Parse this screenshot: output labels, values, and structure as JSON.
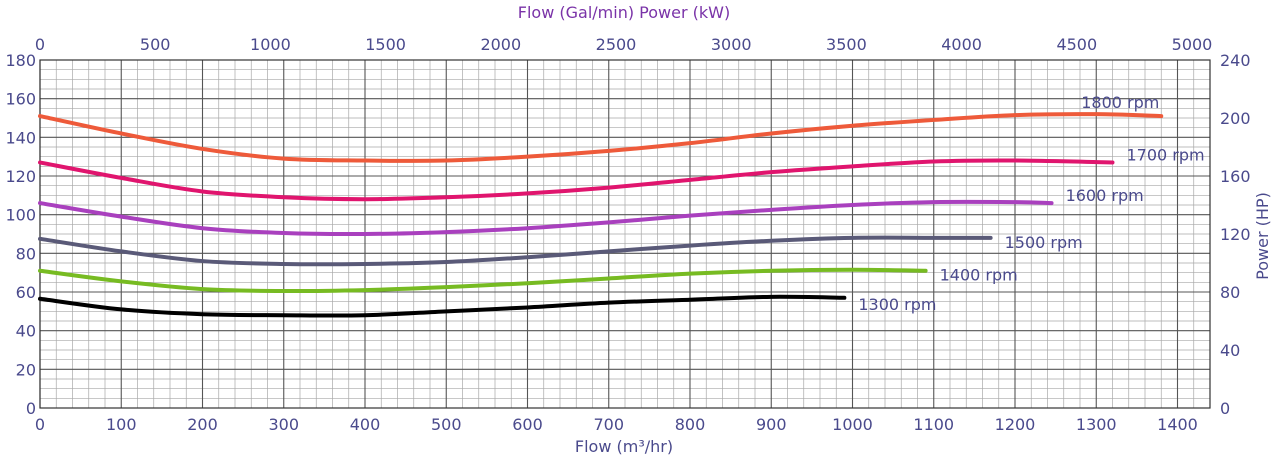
{
  "chart_data": {
    "type": "line",
    "title": "",
    "xlabel": "Flow (m³/hr)",
    "x2label": "Flow (Gal/min) Power (kW)",
    "ylabel": "",
    "y2label": "Power (HP)",
    "xlim": [
      0,
      1440
    ],
    "ylim": [
      0,
      180
    ],
    "x_ticks": [
      0,
      100,
      200,
      300,
      400,
      500,
      600,
      700,
      800,
      900,
      1000,
      1100,
      1200,
      1300,
      1400
    ],
    "y_ticks": [
      0,
      20,
      40,
      60,
      80,
      100,
      120,
      140,
      160,
      180
    ],
    "x2_ticks": [
      0,
      500,
      1000,
      1500,
      2000,
      2500,
      3000,
      3500,
      4000,
      4500,
      5000
    ],
    "y2_ticks": [
      0,
      40,
      80,
      120,
      160,
      200,
      240
    ],
    "grid": true,
    "colors": {
      "axis_text": "#4a4a8c",
      "top_axis_title": "#7a33a8",
      "right_axis_title": "#4a4a8c",
      "major_grid": "#555555",
      "minor_grid": "#a8a8a8"
    },
    "series": [
      {
        "name": "1800 rpm",
        "color": "#ee5a3a",
        "x": [
          0,
          100,
          200,
          300,
          400,
          500,
          600,
          700,
          800,
          900,
          1000,
          1100,
          1200,
          1300,
          1380
        ],
        "y": [
          151,
          142,
          134,
          129,
          128,
          128,
          130,
          133,
          137,
          142,
          146,
          149,
          151.5,
          152,
          151
        ]
      },
      {
        "name": "1700 rpm",
        "color": "#e0156e",
        "x": [
          0,
          100,
          200,
          300,
          400,
          500,
          600,
          700,
          800,
          900,
          1000,
          1100,
          1200,
          1320
        ],
        "y": [
          127,
          119,
          112,
          109,
          108,
          109,
          111,
          114,
          118,
          122,
          125,
          127.5,
          128,
          127
        ]
      },
      {
        "name": "1600 rpm",
        "color": "#a940be",
        "x": [
          0,
          100,
          200,
          300,
          400,
          500,
          600,
          700,
          800,
          900,
          1000,
          1100,
          1200,
          1245
        ],
        "y": [
          106,
          99,
          93,
          90.5,
          90,
          91,
          93,
          96,
          99.5,
          102.5,
          105,
          106.5,
          106.5,
          106
        ]
      },
      {
        "name": "1500 rpm",
        "color": "#5a5a78",
        "x": [
          0,
          100,
          200,
          300,
          400,
          500,
          600,
          700,
          800,
          900,
          1000,
          1100,
          1170
        ],
        "y": [
          87.5,
          81,
          76,
          74.5,
          74.5,
          75.5,
          78,
          81,
          84,
          86.5,
          88,
          88,
          88
        ]
      },
      {
        "name": "1400 rpm",
        "color": "#77bb22",
        "x": [
          0,
          100,
          200,
          300,
          400,
          500,
          600,
          700,
          800,
          900,
          1000,
          1090
        ],
        "y": [
          71,
          65.5,
          61.5,
          60.5,
          61,
          62.5,
          64.5,
          67,
          69.5,
          71,
          71.5,
          71
        ]
      },
      {
        "name": "1300 rpm",
        "color": "#000000",
        "x": [
          0,
          100,
          200,
          300,
          400,
          500,
          600,
          700,
          800,
          900,
          990
        ],
        "y": [
          56.5,
          51,
          48.5,
          48,
          48,
          50,
          52,
          54.5,
          56,
          57.5,
          57
        ]
      }
    ],
    "series_labels": [
      {
        "text": "1800 rpm",
        "series": "1800 rpm"
      },
      {
        "text": "1700 rpm",
        "series": "1700 rpm"
      },
      {
        "text": "1600 rpm",
        "series": "1600 rpm"
      },
      {
        "text": "1500 rpm",
        "series": "1500 rpm"
      },
      {
        "text": "1400 rpm",
        "series": "1400 rpm"
      },
      {
        "text": "1300 rpm",
        "series": "1300 rpm"
      }
    ]
  }
}
